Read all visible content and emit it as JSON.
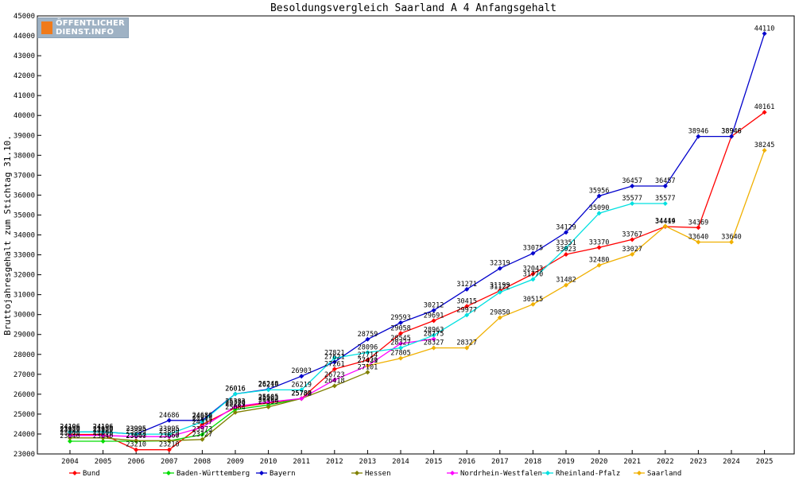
{
  "logo": {
    "line1": "ÖFFENTLICHER",
    "line2": "DIENST.INFO"
  },
  "chart_data": {
    "type": "line",
    "title": "Besoldungsvergleich Saarland A 4 Anfangsgehalt",
    "xlabel": "",
    "ylabel": "Bruttojahresgehalt zum Stichtag 31.10.",
    "ylim": [
      23000,
      45000
    ],
    "yticks": [
      23000,
      24000,
      25000,
      26000,
      27000,
      28000,
      29000,
      30000,
      31000,
      32000,
      33000,
      34000,
      35000,
      36000,
      37000,
      38000,
      39000,
      40000,
      41000,
      42000,
      43000,
      44000,
      45000
    ],
    "grid": false,
    "legend": "bottom",
    "x": [
      2004,
      2005,
      2006,
      2007,
      2008,
      2009,
      2010,
      2011,
      2012,
      2013,
      2014,
      2015,
      2016,
      2017,
      2018,
      2019,
      2020,
      2021,
      2022,
      2023,
      2024,
      2025
    ],
    "series": [
      {
        "name": "Bund",
        "color": "#ff0000",
        "values": [
          23980,
          23980,
          23210,
          23210,
          24475,
          25320,
          25563,
          25780,
          27261,
          27714,
          29058,
          29691,
          30415,
          31199,
          32043,
          33023,
          33370,
          33767,
          34419,
          34369,
          38946,
          40161
        ]
      },
      {
        "name": "Baden-Württemberg",
        "color": "#00dd00",
        "values": [
          23640,
          23640,
          23640,
          23660,
          23973,
          25229,
          25462,
          25780,
          null,
          null,
          null,
          null,
          null,
          null,
          null,
          null,
          null,
          null,
          null,
          null,
          null,
          null
        ]
      },
      {
        "name": "Bayern",
        "color": "#0000cc",
        "values": [
          24106,
          24106,
          23995,
          24686,
          24686,
          26016,
          26248,
          26903,
          27621,
          28759,
          29593,
          30212,
          31271,
          32319,
          33075,
          34129,
          35956,
          36457,
          36457,
          38946,
          38946,
          44110
        ]
      },
      {
        "name": "Hessen",
        "color": "#808000",
        "values": [
          23806,
          23806,
          23667,
          23667,
          23727,
          25084,
          25359,
          25782,
          26418,
          27101,
          null,
          null,
          null,
          null,
          null,
          null,
          null,
          null,
          null,
          null,
          null,
          null
        ]
      },
      {
        "name": "Nordrhein-Westfalen",
        "color": "#ff00ff",
        "values": [
          23929,
          23929,
          23869,
          23869,
          24337,
          25383,
          25605,
          25782,
          26723,
          27429,
          28545,
          28775,
          null,
          null,
          null,
          null,
          null,
          null,
          null,
          null,
          null,
          null
        ]
      },
      {
        "name": "Rheinland-Pfalz",
        "color": "#00e0e0",
        "values": [
          24106,
          24106,
          23995,
          23995,
          24613,
          26016,
          26219,
          26219,
          27821,
          28096,
          28327,
          28963,
          29977,
          31122,
          31770,
          33351,
          35090,
          35577,
          35577,
          null,
          null,
          null
        ]
      },
      {
        "name": "Saarland",
        "color": "#f0b000",
        "values": [
          null,
          null,
          null,
          null,
          null,
          null,
          null,
          null,
          null,
          27431,
          27805,
          28327,
          28327,
          29850,
          30515,
          31482,
          32480,
          33027,
          34444,
          33640,
          33640,
          38245
        ]
      }
    ]
  }
}
